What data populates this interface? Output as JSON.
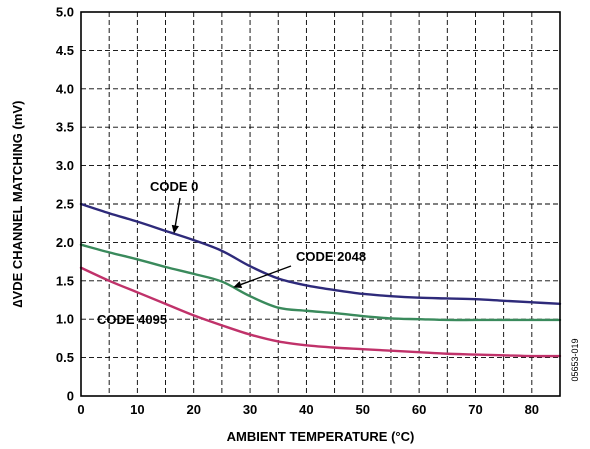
{
  "chart_data": {
    "type": "line",
    "title": "",
    "xlabel": "AMBIENT TEMPERATURE (°C)",
    "ylabel": "∆VDE CHANNEL MATCHING (mV)",
    "xlim": [
      0,
      85
    ],
    "ylim": [
      0,
      5.0
    ],
    "x_ticks": [
      0,
      10,
      20,
      30,
      40,
      50,
      60,
      70,
      80
    ],
    "x_tick_labels": [
      "0",
      "10",
      "20",
      "30",
      "40",
      "50",
      "60",
      "70",
      "80"
    ],
    "y_ticks": [
      0,
      0.5,
      1.0,
      1.5,
      2.0,
      2.5,
      3.0,
      3.5,
      4.0,
      4.5,
      5.0
    ],
    "y_tick_labels": [
      "0",
      "0.5",
      "1.0",
      "1.5",
      "2.0",
      "2.5",
      "3.0",
      "3.5",
      "4.0",
      "4.5",
      "5.0"
    ],
    "x_minor_grid": 5,
    "grid": true,
    "legend": "none",
    "series": [
      {
        "name": "CODE 0",
        "color": "#2e2a7a",
        "x": [
          0,
          5,
          10,
          15,
          20,
          25,
          30,
          35,
          40,
          45,
          50,
          55,
          60,
          65,
          70,
          75,
          80,
          85
        ],
        "y": [
          2.5,
          2.38,
          2.27,
          2.15,
          2.03,
          1.89,
          1.69,
          1.53,
          1.44,
          1.38,
          1.33,
          1.3,
          1.28,
          1.27,
          1.26,
          1.24,
          1.22,
          1.2
        ]
      },
      {
        "name": "CODE 2048",
        "color": "#3a8a5c",
        "x": [
          0,
          5,
          10,
          15,
          20,
          25,
          30,
          35,
          40,
          45,
          50,
          55,
          60,
          65,
          70,
          75,
          80,
          85
        ],
        "y": [
          1.97,
          1.87,
          1.78,
          1.68,
          1.59,
          1.49,
          1.3,
          1.15,
          1.11,
          1.08,
          1.04,
          1.01,
          1.0,
          0.99,
          0.99,
          0.99,
          0.99,
          0.99
        ]
      },
      {
        "name": "CODE 4095",
        "color": "#c0326a",
        "x": [
          0,
          5,
          10,
          15,
          20,
          25,
          30,
          35,
          40,
          45,
          50,
          55,
          60,
          65,
          70,
          75,
          80,
          85
        ],
        "y": [
          1.67,
          1.5,
          1.35,
          1.2,
          1.05,
          0.92,
          0.8,
          0.71,
          0.66,
          0.63,
          0.61,
          0.59,
          0.57,
          0.55,
          0.54,
          0.53,
          0.52,
          0.52
        ]
      }
    ],
    "annotations": [
      {
        "text": "CODE 0",
        "series": "CODE 0",
        "arrow_to_x": 16.5
      },
      {
        "text": "CODE 2048",
        "series": "CODE 2048",
        "arrow_to_x": 27
      },
      {
        "text": "CODE 4095",
        "series": "CODE 4095"
      }
    ],
    "figure_id": "05653-019"
  }
}
